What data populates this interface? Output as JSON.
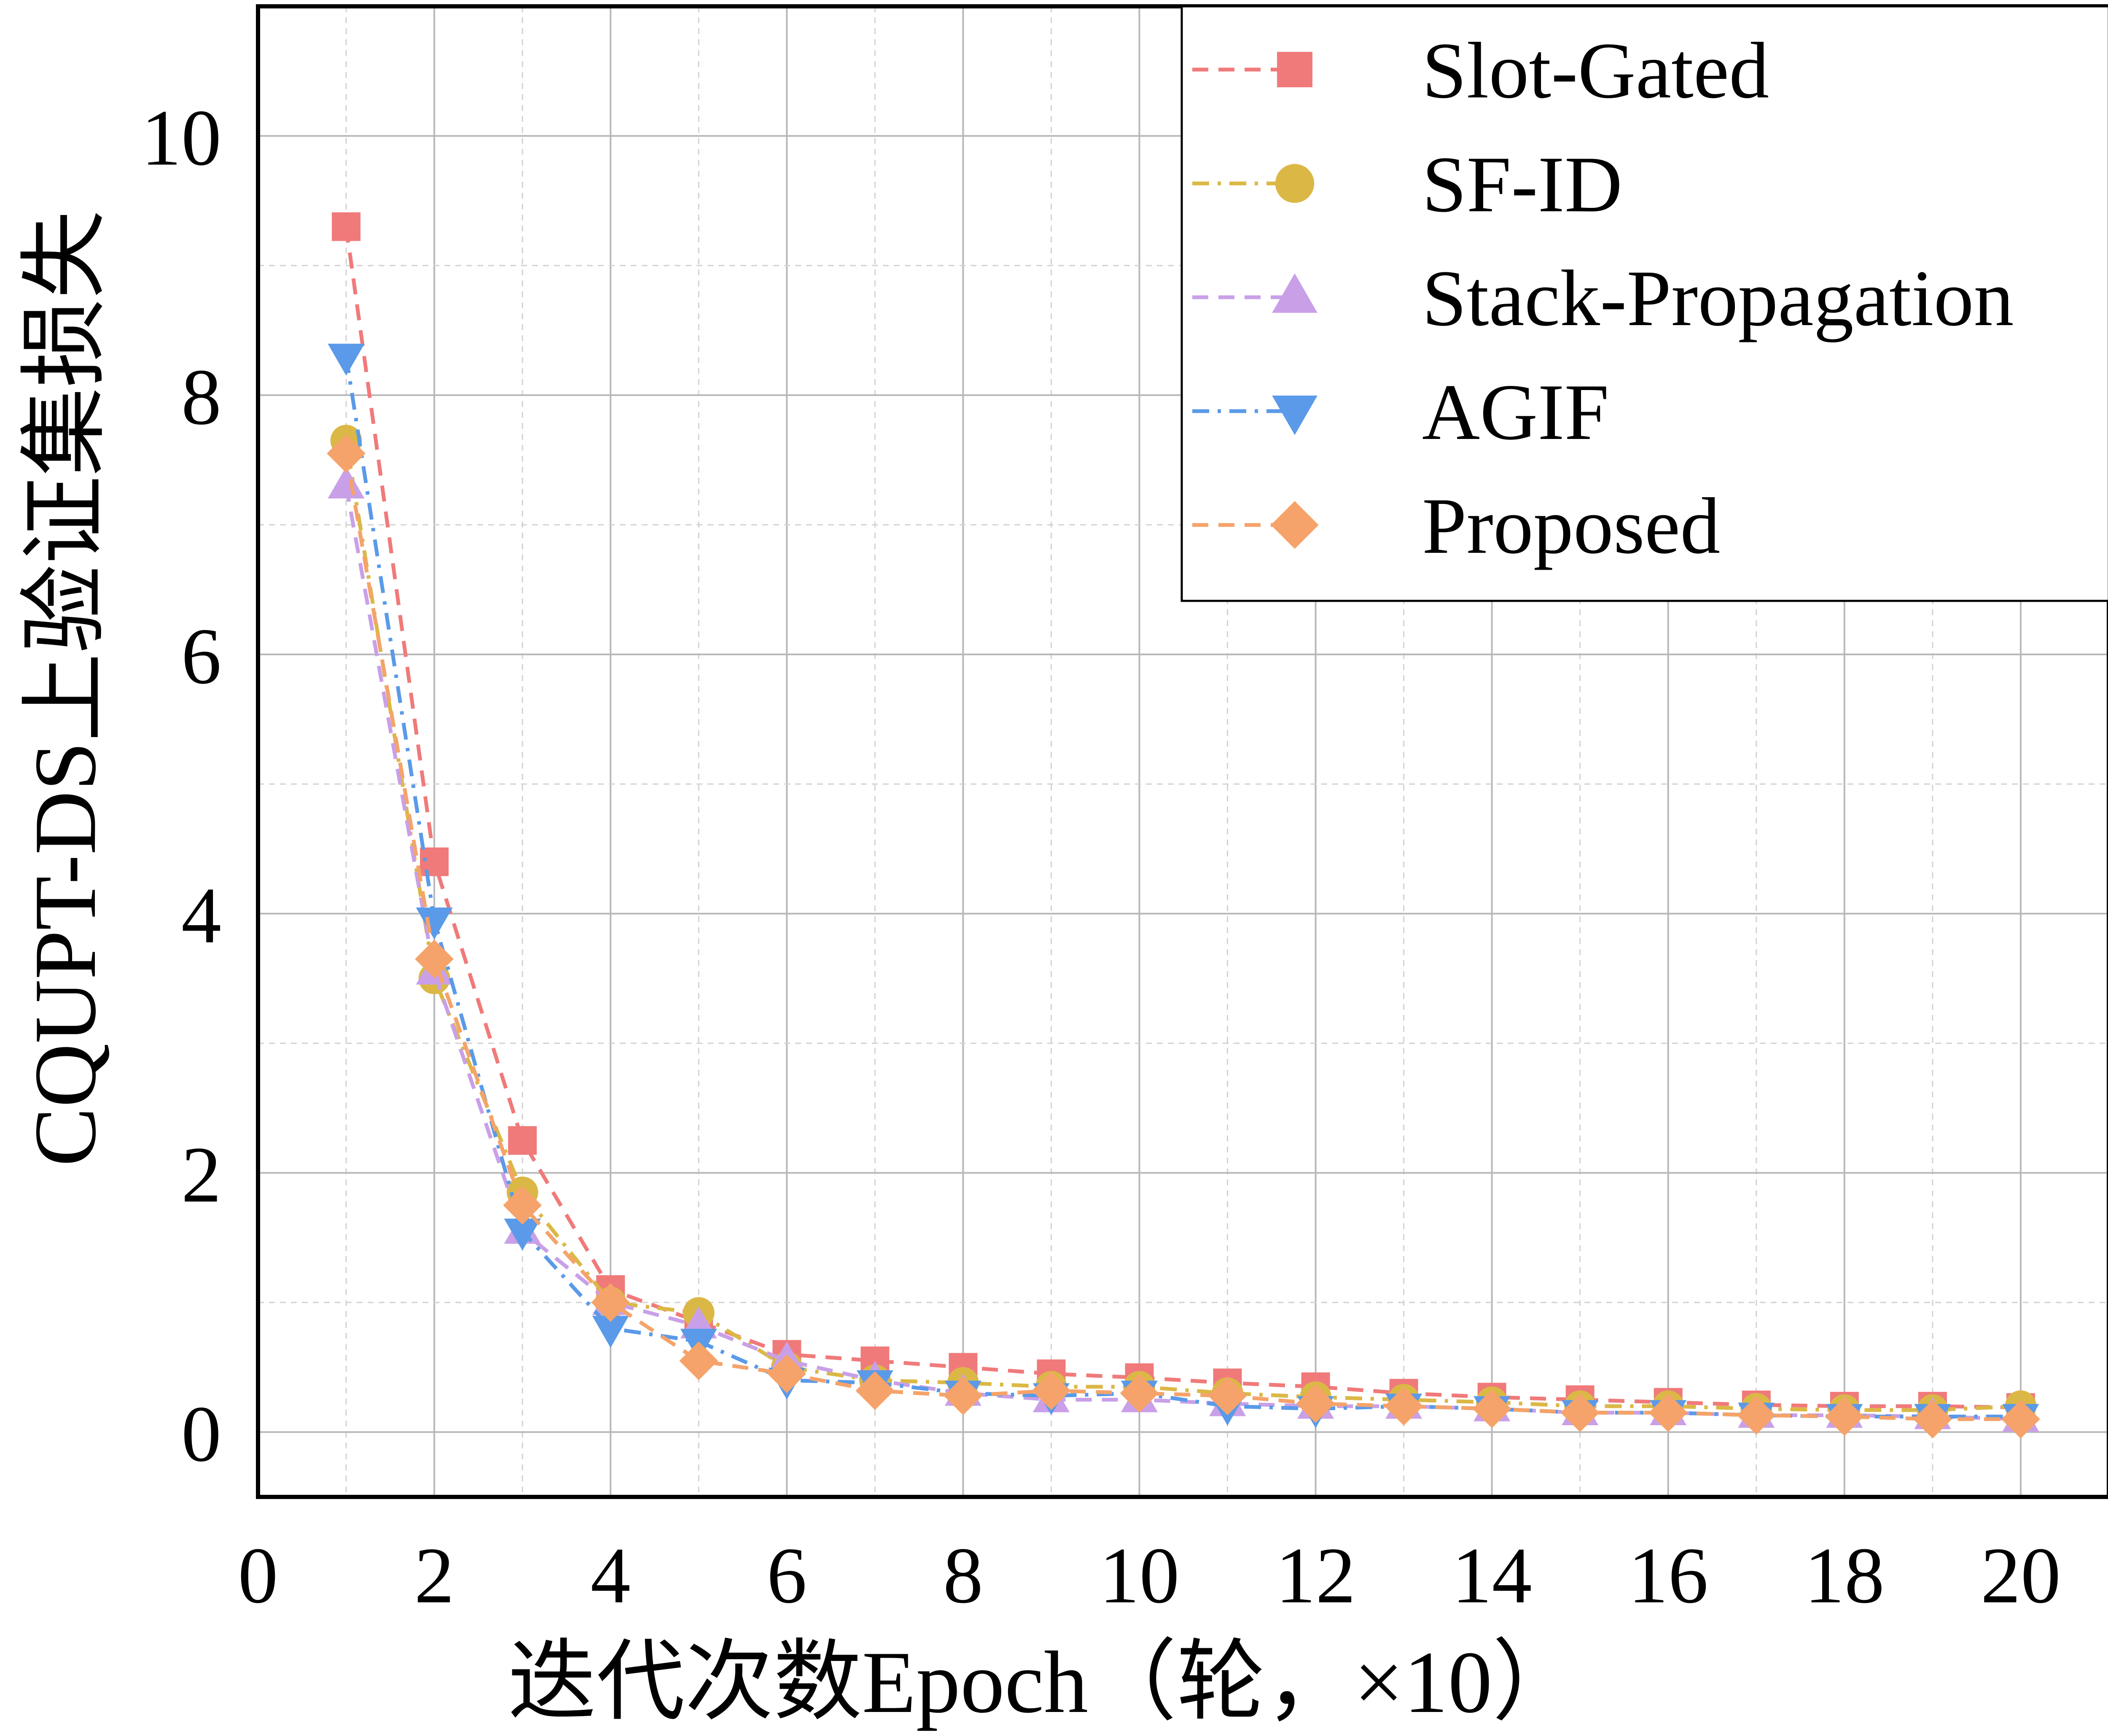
{
  "chart_data": {
    "type": "line",
    "xlabel": "迭代次数Epoch（轮，×10）",
    "ylabel": "CQUPT-DS上验证集损失",
    "xlim": [
      0,
      21
    ],
    "ylim": [
      -0.5,
      11.0
    ],
    "xticks": [
      0,
      2,
      4,
      6,
      8,
      10,
      12,
      14,
      16,
      18,
      20
    ],
    "yticks": [
      0,
      2,
      4,
      6,
      8,
      10
    ],
    "grid": true,
    "legend_position": "top-right",
    "x": [
      1,
      2,
      3,
      4,
      5,
      6,
      7,
      8,
      9,
      10,
      11,
      12,
      13,
      14,
      15,
      16,
      17,
      18,
      19,
      20
    ],
    "series": [
      {
        "name": "Slot-Gated",
        "color": "#f07a7a",
        "marker": "square",
        "dash": "dashed",
        "values": [
          9.3,
          4.4,
          2.25,
          1.1,
          0.85,
          0.6,
          0.55,
          0.5,
          0.45,
          0.42,
          0.38,
          0.35,
          0.3,
          0.27,
          0.25,
          0.23,
          0.21,
          0.2,
          0.2,
          0.19
        ]
      },
      {
        "name": "SF-ID",
        "color": "#dbb846",
        "marker": "circle",
        "dash": "dashdot",
        "values": [
          7.65,
          3.5,
          1.85,
          1.0,
          0.92,
          0.5,
          0.4,
          0.38,
          0.35,
          0.35,
          0.3,
          0.27,
          0.25,
          0.23,
          0.2,
          0.2,
          0.18,
          0.17,
          0.17,
          0.2
        ]
      },
      {
        "name": "Stack-Propagation",
        "color": "#c9a0e8",
        "marker": "triangle-up",
        "dash": "dashed",
        "values": [
          7.3,
          3.55,
          1.55,
          1.0,
          0.82,
          0.55,
          0.4,
          0.3,
          0.25,
          0.25,
          0.22,
          0.2,
          0.2,
          0.18,
          0.15,
          0.15,
          0.13,
          0.13,
          0.12,
          0.1
        ]
      },
      {
        "name": "AGIF",
        "color": "#5a9ae8",
        "marker": "triangle-down",
        "dash": "dashdot",
        "values": [
          8.3,
          3.95,
          1.55,
          0.8,
          0.7,
          0.4,
          0.38,
          0.3,
          0.28,
          0.3,
          0.2,
          0.18,
          0.2,
          0.18,
          0.15,
          0.15,
          0.13,
          0.12,
          0.12,
          0.12
        ]
      },
      {
        "name": "Proposed",
        "color": "#f5a36a",
        "marker": "diamond",
        "dash": "dashed",
        "values": [
          7.55,
          3.65,
          1.75,
          1.0,
          0.55,
          0.45,
          0.32,
          0.28,
          0.32,
          0.3,
          0.28,
          0.22,
          0.2,
          0.18,
          0.15,
          0.15,
          0.13,
          0.12,
          0.1,
          0.1
        ]
      }
    ]
  }
}
